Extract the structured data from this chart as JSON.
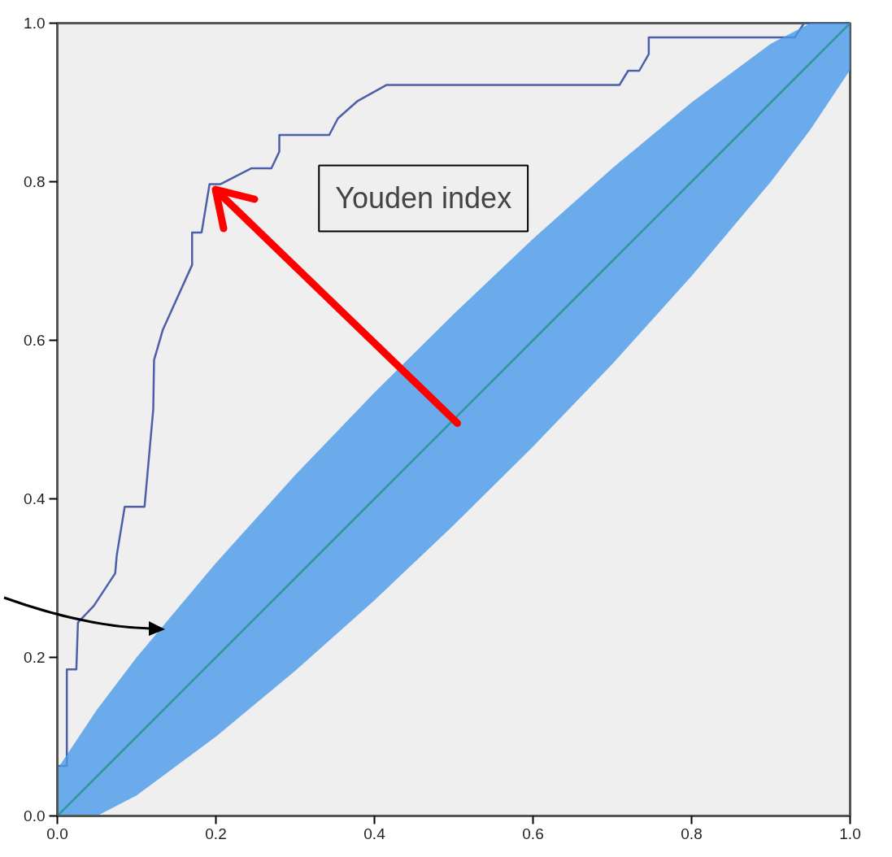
{
  "chart_data": {
    "type": "line",
    "xlim": [
      0,
      1
    ],
    "ylim": [
      0,
      1
    ],
    "xticks": [
      {
        "value": 0,
        "label": "0.0"
      },
      {
        "value": 0.2,
        "label": "0.2"
      },
      {
        "value": 0.4,
        "label": "0.4"
      },
      {
        "value": 0.6,
        "label": "0.6"
      },
      {
        "value": 0.8,
        "label": "0.8"
      },
      {
        "value": 1,
        "label": "1.0"
      }
    ],
    "yticks": [
      {
        "value": 0,
        "label": "0.0"
      },
      {
        "value": 0.2,
        "label": "0.2"
      },
      {
        "value": 0.4,
        "label": "0.4"
      },
      {
        "value": 0.6,
        "label": "0.6"
      },
      {
        "value": 0.8,
        "label": "0.8"
      },
      {
        "value": 1,
        "label": "1.0"
      }
    ],
    "grid": false,
    "series": [
      {
        "color": "#4d5fa8",
        "x": [
          0,
          0,
          0.012,
          0.012,
          0.024,
          0.026,
          0.046,
          0.073,
          0.075,
          0.085,
          0.11,
          0.121,
          0.122,
          0.133,
          0.17,
          0.17,
          0.182,
          0.192,
          0.206,
          0.245,
          0.27,
          0.28,
          0.28,
          0.343,
          0.354,
          0.379,
          0.415,
          0.709,
          0.72,
          0.734,
          0.746,
          0.746,
          0.93,
          0.942,
          1
        ],
        "values": [
          0,
          0.063,
          0.063,
          0.185,
          0.185,
          0.244,
          0.265,
          0.306,
          0.329,
          0.39,
          0.39,
          0.513,
          0.575,
          0.613,
          0.695,
          0.736,
          0.736,
          0.797,
          0.797,
          0.817,
          0.817,
          0.838,
          0.859,
          0.859,
          0.88,
          0.902,
          0.922,
          0.922,
          0.94,
          0.94,
          0.961,
          0.982,
          0.982,
          1,
          1
        ]
      },
      {
        "color": "#2a9a9a",
        "x": [
          0,
          0.05,
          0.1,
          0.2,
          0.3,
          0.4,
          0.5,
          0.6,
          0.7,
          0.8,
          0.9,
          0.95,
          1
        ],
        "values": [
          0,
          0.05,
          0.1,
          0.2,
          0.3,
          0.4,
          0.5,
          0.6,
          0.7,
          0.8,
          0.9,
          0.95,
          1
        ],
        "lower": [
          0,
          0,
          0.026,
          0.1,
          0.183,
          0.272,
          0.367,
          0.466,
          0.57,
          0.681,
          0.8,
          0.866,
          0.941
        ],
        "upper": [
          0.059,
          0.134,
          0.2,
          0.319,
          0.43,
          0.534,
          0.633,
          0.728,
          0.817,
          0.9,
          0.974,
          1,
          1
        ]
      }
    ],
    "annotations": [
      "Youden index"
    ]
  }
}
